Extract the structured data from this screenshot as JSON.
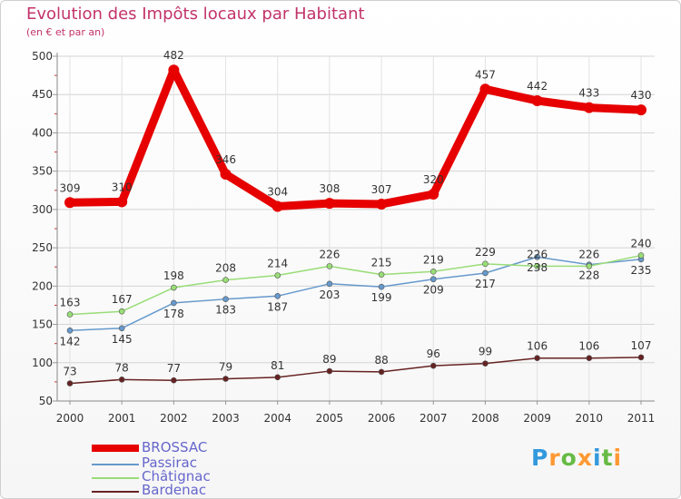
{
  "chart_data": {
    "type": "line",
    "title": "Evolution des Impôts locaux par Habitant",
    "subtitle": "(en € et par an)",
    "xlabel": "",
    "ylabel": "",
    "ylim": [
      50,
      500
    ],
    "yticks": [
      50,
      100,
      150,
      200,
      250,
      300,
      350,
      400,
      450,
      500
    ],
    "categories": [
      "2000",
      "2001",
      "2002",
      "2003",
      "2004",
      "2005",
      "2006",
      "2007",
      "2008",
      "2009",
      "2010",
      "2011"
    ],
    "series": [
      {
        "name": "BROSSAC",
        "color": "#e60000",
        "values": [
          309,
          310,
          482,
          346,
          304,
          308,
          307,
          320,
          457,
          442,
          433,
          430
        ]
      },
      {
        "name": "Passirac",
        "color": "#6699cc",
        "values": [
          142,
          145,
          178,
          183,
          187,
          203,
          199,
          209,
          217,
          238,
          228,
          235
        ]
      },
      {
        "name": "Châtignac",
        "color": "#99dd77",
        "values": [
          163,
          167,
          198,
          208,
          214,
          226,
          215,
          219,
          229,
          226,
          226,
          240
        ]
      },
      {
        "name": "Bardenac",
        "color": "#662222",
        "values": [
          73,
          78,
          77,
          79,
          81,
          89,
          88,
          96,
          99,
          106,
          106,
          107
        ]
      }
    ]
  },
  "logo": {
    "letters": [
      "P",
      "r",
      "o",
      "x",
      "i",
      "t",
      "i"
    ],
    "colors": [
      "#3399dd",
      "#ff9933",
      "#66bb44",
      "#ff9933",
      "#3399dd",
      "#66bb44",
      "#ff9933"
    ]
  }
}
